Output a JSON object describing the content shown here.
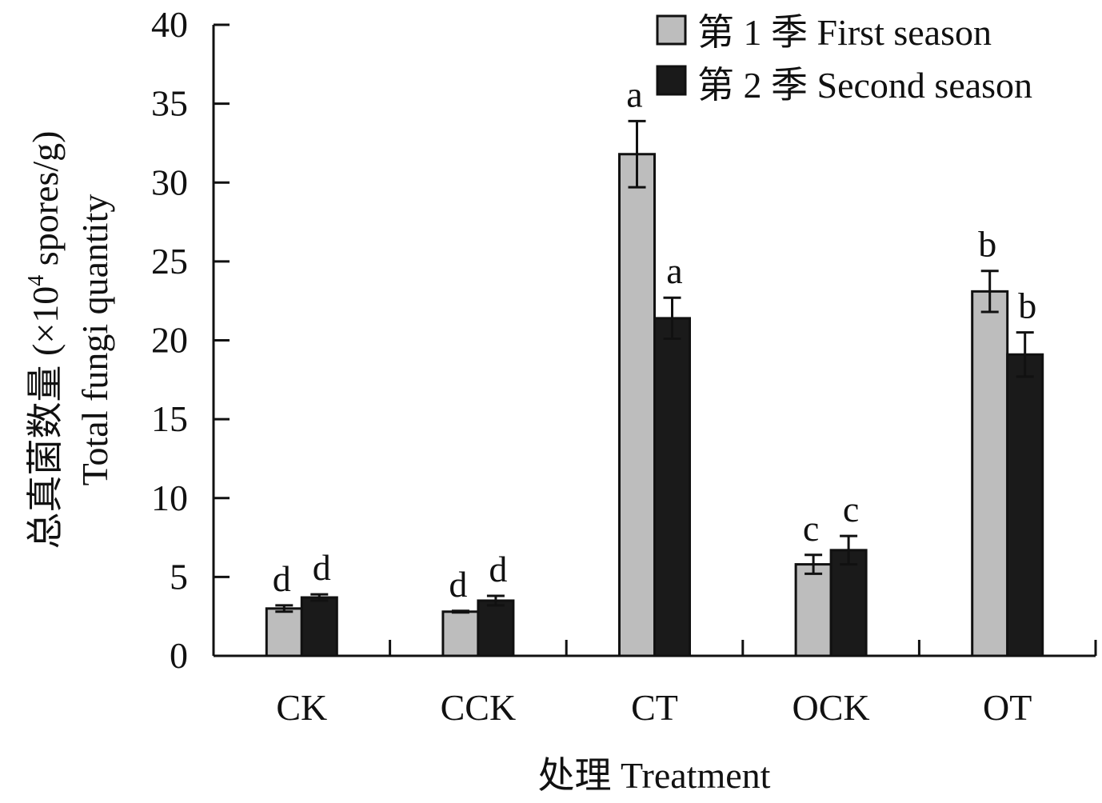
{
  "chart_data": {
    "type": "bar",
    "categories": [
      "CK",
      "CCK",
      "CT",
      "OCK",
      "OT"
    ],
    "series": [
      {
        "name": "第 1 季 First season",
        "color": "#bdbdbd",
        "values": [
          3.0,
          2.8,
          31.8,
          5.8,
          23.1
        ],
        "errors": [
          0.2,
          0.05,
          2.1,
          0.6,
          1.3
        ],
        "letters": [
          "d",
          "d",
          "a",
          "c",
          "b"
        ]
      },
      {
        "name": "第 2 季 Second season",
        "color": "#1a1a1a",
        "values": [
          3.7,
          3.5,
          21.4,
          6.7,
          19.1
        ],
        "errors": [
          0.2,
          0.3,
          1.3,
          0.9,
          1.4
        ],
        "letters": [
          "d",
          "d",
          "a",
          "c",
          "b"
        ]
      }
    ],
    "xlabel": "处理 Treatment",
    "ylabel_cn": "总真菌数量 (×10",
    "ylabel_sup": "4",
    "ylabel_tail": " spores/g)",
    "ylabel_en": "Total fungi quantity",
    "ylim": [
      0,
      40
    ],
    "yticks": [
      0,
      5,
      10,
      15,
      20,
      25,
      30,
      35,
      40
    ],
    "grid": false,
    "legend_position": "top-right"
  }
}
